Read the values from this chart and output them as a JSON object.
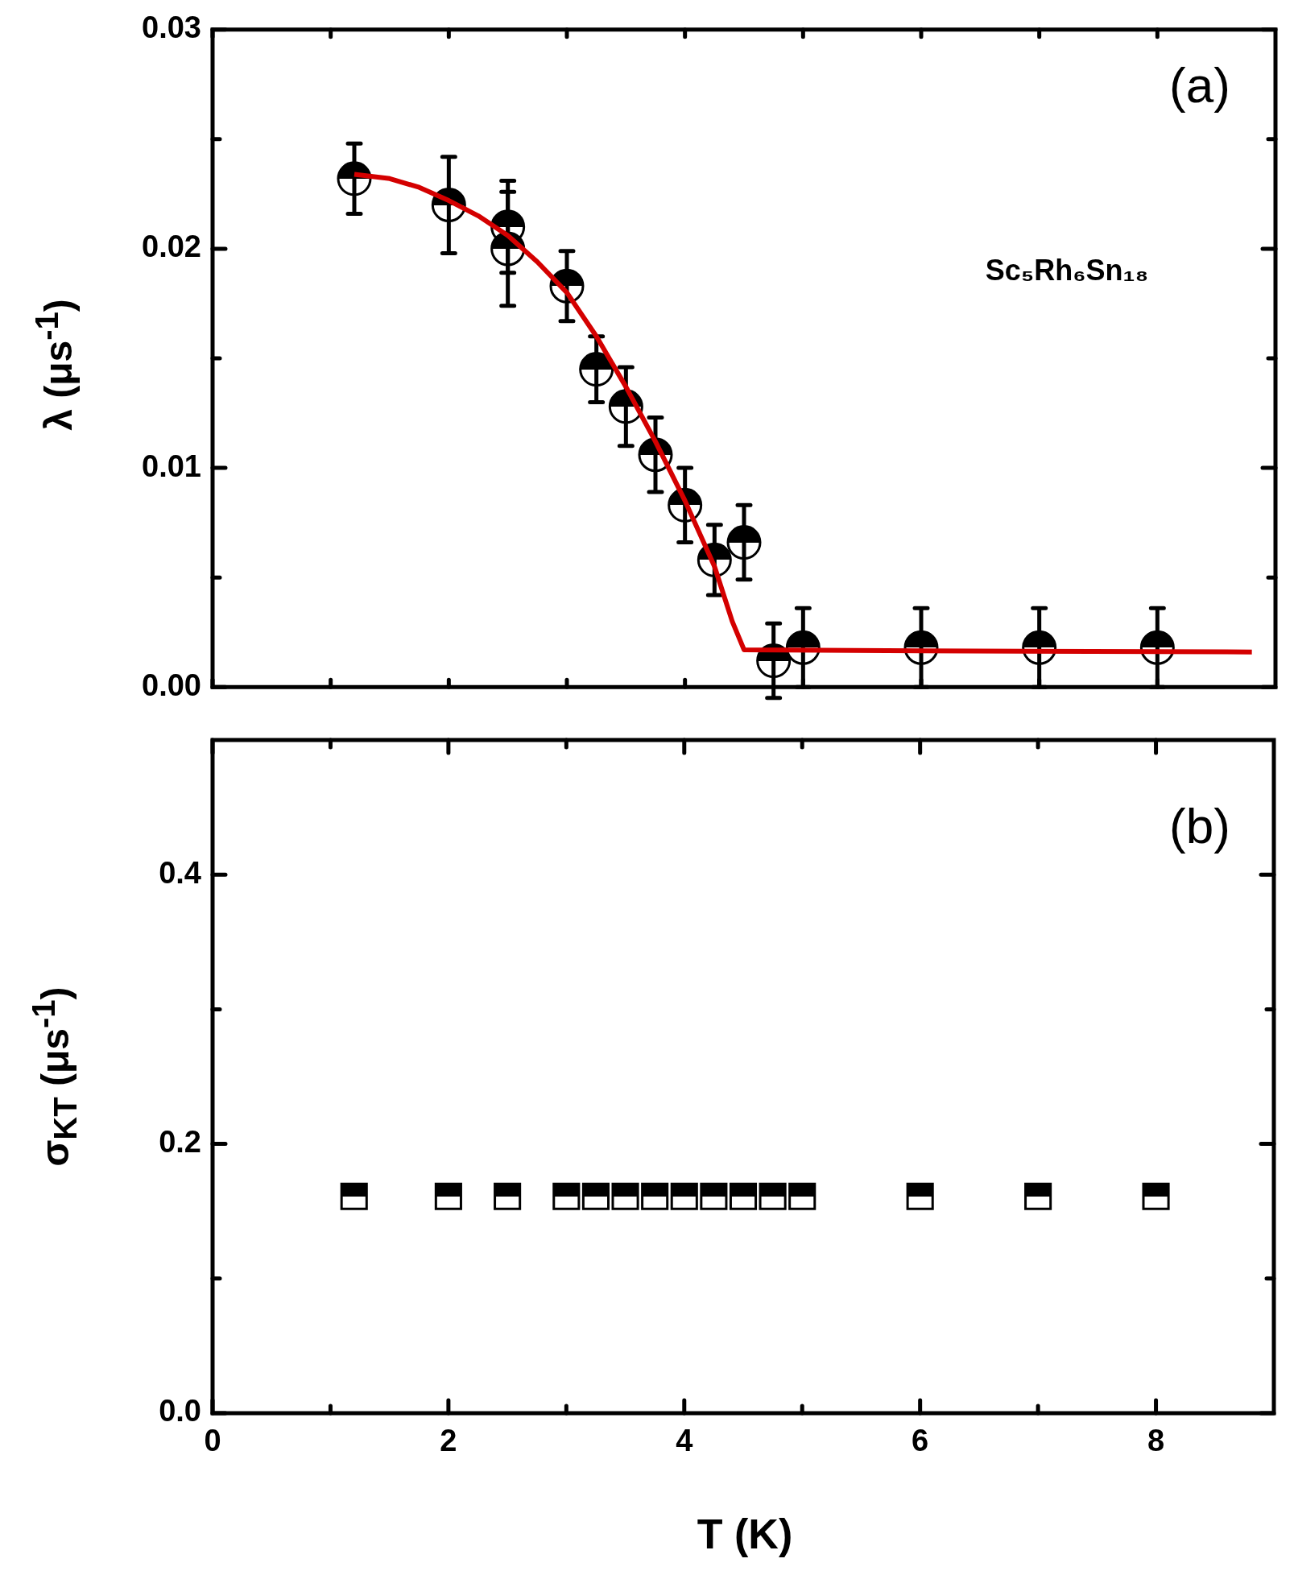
{
  "chart_data": [
    {
      "type": "scatter",
      "ylabel": "λ (μs$^{-1}$)",
      "xlim": [
        0,
        9
      ],
      "ylim": [
        0,
        0.03
      ],
      "xticks": [
        {
          "value": 0,
          "label": null
        },
        {
          "value": 1,
          "label": null
        },
        {
          "value": 2,
          "label": null
        },
        {
          "value": 3,
          "label": null
        },
        {
          "value": 4,
          "label": null
        },
        {
          "value": 5,
          "label": null
        },
        {
          "value": 6,
          "label": null
        },
        {
          "value": 7,
          "label": null
        },
        {
          "value": 8,
          "label": null
        }
      ],
      "yticks": [
        {
          "value": 0,
          "label": "0.00"
        },
        {
          "value": 0.005,
          "label": null
        },
        0.01,
        {
          "value": 0.015,
          "label": null
        },
        0.02,
        {
          "value": 0.025,
          "label": null
        },
        0.03
      ],
      "tick_labels": "y",
      "annotations": [
        "(a)",
        "Sc₅Rh₆Sn₁₈"
      ],
      "series": [
        {
          "type": "scatter",
          "marker": "circle",
          "color": "#000000",
          "x": [
            1.2,
            2,
            2.5,
            2.5,
            3,
            3.25,
            3.5,
            3.75,
            4,
            4.25,
            4.5,
            4.75,
            5,
            6,
            7,
            8
          ],
          "values": [
            0.0232,
            0.022,
            0.021,
            0.02,
            0.0183,
            0.0145,
            0.0128,
            0.0106,
            0.0083,
            0.0058,
            0.0066,
            0.0012,
            0.0018,
            0.0018,
            0.0018,
            0.0018
          ],
          "errors": [
            0.0016,
            0.0022,
            0.0021,
            0.0026,
            0.0016,
            0.0015,
            0.0018,
            0.0017,
            0.0017,
            0.0016,
            0.0017,
            0.0017,
            0.0018,
            0.0018,
            0.0018,
            0.0018
          ]
        },
        {
          "type": "line",
          "marker": "none",
          "color": "#d40000",
          "x": [
            1.2,
            1.5,
            1.75,
            2,
            2.25,
            2.5,
            2.75,
            3,
            3.25,
            3.5,
            3.75,
            4,
            4.25,
            4.4,
            4.5,
            6,
            8.8
          ],
          "values": [
            0.0234,
            0.0232,
            0.0228,
            0.0222,
            0.0215,
            0.0206,
            0.0194,
            0.018,
            0.016,
            0.0137,
            0.0112,
            0.0085,
            0.0055,
            0.003,
            0.0017,
            0.00165,
            0.0016
          ]
        }
      ]
    },
    {
      "type": "scatter",
      "ylabel": "σ$_{KT}$ (μs$^{-1}$)",
      "xlabel": "T (K)",
      "xlim": [
        0,
        9
      ],
      "ylim": [
        0,
        0.5
      ],
      "xticks": [
        0,
        {
          "value": 1,
          "label": null
        },
        2,
        {
          "value": 3,
          "label": null
        },
        4,
        {
          "value": 5,
          "label": null
        },
        6,
        {
          "value": 7,
          "label": null
        },
        8
      ],
      "yticks": [
        {
          "value": 0,
          "label": "0.0"
        },
        {
          "value": 0.1,
          "label": null
        },
        0.2,
        {
          "value": 0.3,
          "label": null
        },
        0.4
      ],
      "annotations": [
        "(b)"
      ],
      "series": [
        {
          "type": "scatter",
          "marker": "square",
          "color": "#000000",
          "x": [
            1.2,
            2,
            2.5,
            3,
            3.25,
            3.5,
            3.75,
            4,
            4.25,
            4.5,
            4.75,
            5,
            6,
            7,
            8
          ],
          "values": [
            0.161,
            0.161,
            0.161,
            0.161,
            0.161,
            0.161,
            0.161,
            0.161,
            0.161,
            0.161,
            0.161,
            0.161,
            0.161,
            0.161,
            0.161
          ]
        }
      ]
    }
  ]
}
